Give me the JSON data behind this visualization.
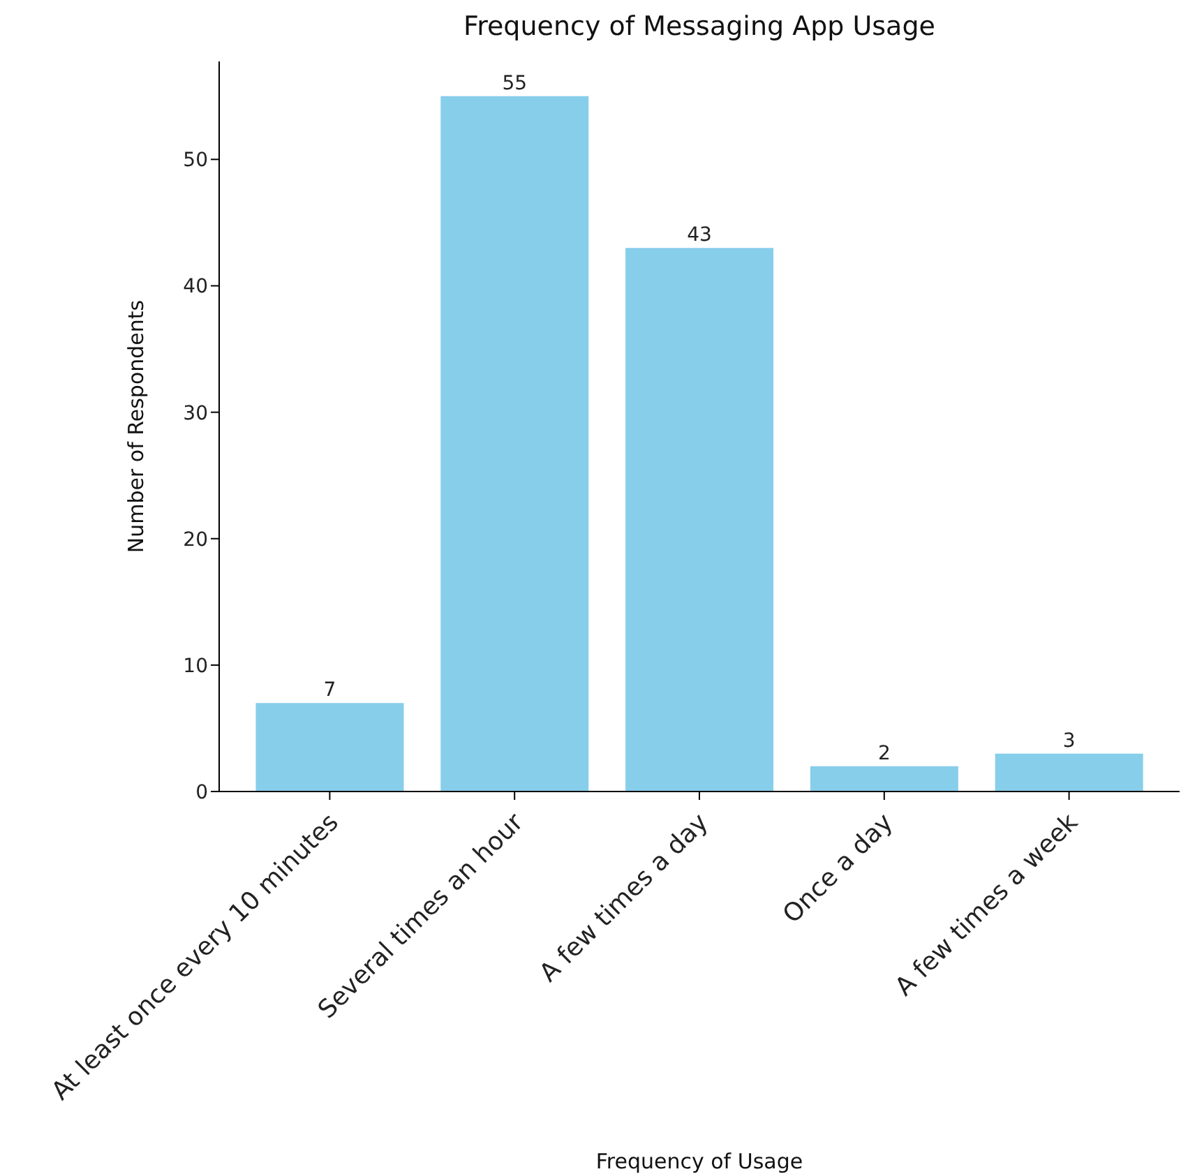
{
  "chart_data": {
    "type": "bar",
    "title": "Frequency of Messaging App Usage",
    "xlabel": "Frequency of Usage",
    "ylabel": "Number of Respondents",
    "categories": [
      "At least once every 10 minutes",
      "Several times an hour",
      "A few times a day",
      "Once a day",
      "A few times a week"
    ],
    "values": [
      7,
      55,
      43,
      2,
      3
    ],
    "color": "#87ceeb",
    "ylim": [
      0,
      57.75
    ],
    "yticks": [
      0,
      10,
      20,
      30,
      40,
      50
    ],
    "grid": false,
    "data_labels": true
  }
}
